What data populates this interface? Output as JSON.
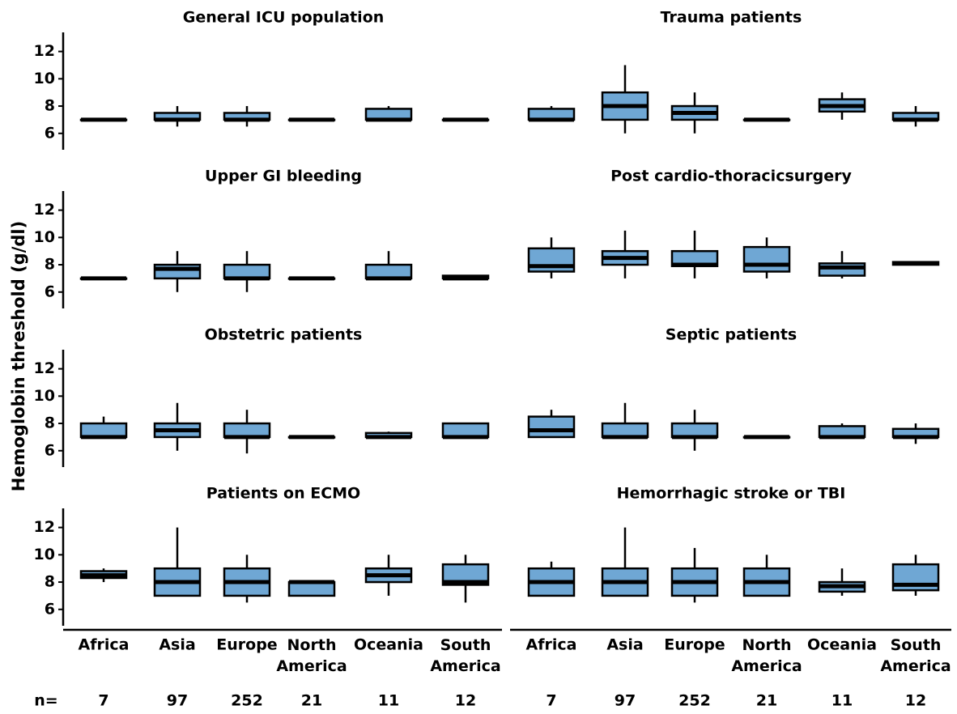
{
  "y_label": "Hemoglobin threshold (g/dl)",
  "categories": [
    "Africa",
    "Asia",
    "Europe",
    "North America",
    "Oceania",
    "South America"
  ],
  "n_label": "n=",
  "n": [
    7,
    97,
    252,
    21,
    11,
    12
  ],
  "ylim": [
    4.8,
    13.4
  ],
  "yticks": [
    6,
    8,
    10,
    12
  ],
  "color": "#6fa7d4",
  "chart_data": [
    {
      "type": "box",
      "title": "General ICU population",
      "boxes": [
        [
          7,
          7,
          7,
          7,
          7
        ],
        [
          6.5,
          7,
          7,
          7.5,
          8
        ],
        [
          6.5,
          7,
          7,
          7.5,
          8
        ],
        [
          7,
          7,
          7,
          7,
          7
        ],
        [
          7,
          7,
          7,
          7.8,
          8
        ],
        [
          7,
          7,
          7,
          7,
          7
        ]
      ]
    },
    {
      "type": "box",
      "title": "Trauma patients",
      "boxes": [
        [
          7,
          7,
          7,
          7.8,
          8
        ],
        [
          6,
          7,
          8,
          9,
          11
        ],
        [
          6,
          7,
          7.5,
          8,
          9
        ],
        [
          7,
          7,
          7,
          7,
          7
        ],
        [
          7,
          7.6,
          8,
          8.5,
          9
        ],
        [
          6.5,
          7,
          7,
          7.5,
          8
        ]
      ]
    },
    {
      "type": "box",
      "title": "Upper GI bleeding",
      "boxes": [
        [
          7,
          7,
          7,
          7,
          7
        ],
        [
          6,
          7,
          7.7,
          8,
          9
        ],
        [
          6,
          7,
          7,
          8,
          9
        ],
        [
          7,
          7,
          7,
          7,
          7
        ],
        [
          7,
          7,
          7,
          8,
          9
        ],
        [
          7,
          7,
          7,
          7.2,
          7.2
        ]
      ]
    },
    {
      "type": "box",
      "title": "Post cardio-thoracicsurgery",
      "boxes": [
        [
          7,
          7.5,
          7.9,
          9.2,
          10
        ],
        [
          7,
          8,
          8.5,
          9,
          10.5
        ],
        [
          7,
          7.9,
          8,
          9,
          10.5
        ],
        [
          7,
          7.5,
          8,
          9.3,
          10
        ],
        [
          7,
          7.2,
          7.8,
          8.1,
          9
        ],
        [
          8,
          8,
          8.1,
          8.2,
          8.2
        ]
      ]
    },
    {
      "type": "box",
      "title": "Obstetric patients",
      "boxes": [
        [
          7,
          7,
          7,
          8,
          8.5
        ],
        [
          6,
          7,
          7.5,
          8,
          9.5
        ],
        [
          5.8,
          7,
          7,
          8,
          9
        ],
        [
          7,
          7,
          7,
          7,
          7
        ],
        [
          7,
          7,
          7,
          7.3,
          7.4
        ],
        [
          7,
          7,
          7,
          8,
          8
        ]
      ]
    },
    {
      "type": "box",
      "title": "Septic patients",
      "boxes": [
        [
          7,
          7,
          7.5,
          8.5,
          9
        ],
        [
          7,
          7,
          7,
          8,
          9.5
        ],
        [
          6,
          7,
          7,
          8,
          9
        ],
        [
          7,
          7,
          7,
          7,
          7
        ],
        [
          7,
          7,
          7,
          7.8,
          8
        ],
        [
          6.5,
          7,
          7,
          7.6,
          8
        ]
      ]
    },
    {
      "type": "box",
      "title": "Patients on ECMO",
      "boxes": [
        [
          8,
          8.3,
          8.5,
          8.8,
          9
        ],
        [
          7,
          7,
          8,
          9,
          12
        ],
        [
          6.5,
          7,
          8,
          9,
          10
        ],
        [
          7,
          7,
          8,
          8,
          8
        ],
        [
          7,
          8,
          8.5,
          9,
          10
        ],
        [
          6.5,
          7.8,
          8,
          9.3,
          10
        ]
      ]
    },
    {
      "type": "box",
      "title": "Hemorrhagic stroke or TBI",
      "boxes": [
        [
          7,
          7,
          8,
          9,
          9.5
        ],
        [
          7,
          7,
          8,
          9,
          12
        ],
        [
          6.5,
          7,
          8,
          9,
          10.5
        ],
        [
          7,
          7,
          8,
          9,
          10
        ],
        [
          7,
          7.3,
          7.7,
          8,
          9
        ],
        [
          7,
          7.4,
          7.8,
          9.3,
          10
        ]
      ]
    }
  ]
}
